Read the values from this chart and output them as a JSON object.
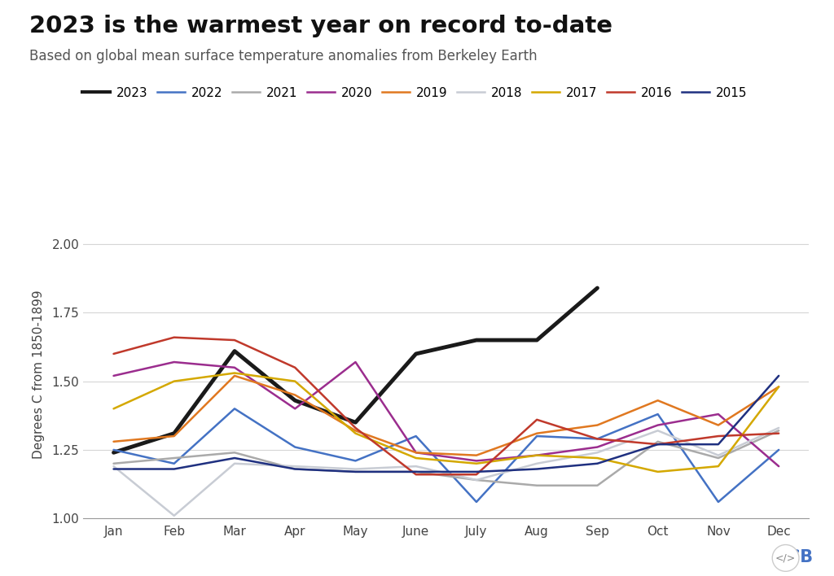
{
  "title": "2023 is the warmest year on record to-date",
  "subtitle": "Based on global mean surface temperature anomalies from Berkeley Earth",
  "ylabel": "Degrees C from 1850-1899",
  "ylim": [
    1.0,
    2.05
  ],
  "yticks": [
    1.0,
    1.25,
    1.5,
    1.75,
    2.0
  ],
  "months": [
    "Jan",
    "Feb",
    "Mar",
    "Apr",
    "May",
    "June",
    "July",
    "Aug",
    "Sep",
    "Oct",
    "Nov",
    "Dec"
  ],
  "series": {
    "2023": {
      "color": "#1a1a1a",
      "linewidth": 3.5,
      "data": [
        1.24,
        1.31,
        1.61,
        1.43,
        1.35,
        1.6,
        1.65,
        1.65,
        1.84,
        null,
        null,
        null
      ]
    },
    "2022": {
      "color": "#4472c4",
      "linewidth": 1.8,
      "data": [
        1.25,
        1.2,
        1.4,
        1.26,
        1.21,
        1.3,
        1.06,
        1.3,
        1.29,
        1.38,
        1.06,
        1.25
      ]
    },
    "2021": {
      "color": "#aaaaaa",
      "linewidth": 1.8,
      "data": [
        1.2,
        1.22,
        1.24,
        1.18,
        1.17,
        1.17,
        1.14,
        1.12,
        1.12,
        1.28,
        1.22,
        1.32
      ]
    },
    "2020": {
      "color": "#9b2d8e",
      "linewidth": 1.8,
      "data": [
        1.52,
        1.57,
        1.55,
        1.4,
        1.57,
        1.24,
        1.21,
        1.23,
        1.26,
        1.34,
        1.38,
        1.19
      ]
    },
    "2019": {
      "color": "#e07820",
      "linewidth": 1.8,
      "data": [
        1.28,
        1.3,
        1.52,
        1.45,
        1.32,
        1.24,
        1.23,
        1.31,
        1.34,
        1.43,
        1.34,
        1.48
      ]
    },
    "2018": {
      "color": "#c8ccd4",
      "linewidth": 1.8,
      "data": [
        1.19,
        1.01,
        1.2,
        1.19,
        1.18,
        1.19,
        1.14,
        1.2,
        1.24,
        1.32,
        1.23,
        1.33
      ]
    },
    "2017": {
      "color": "#d4a800",
      "linewidth": 1.8,
      "data": [
        1.4,
        1.5,
        1.53,
        1.5,
        1.31,
        1.22,
        1.2,
        1.23,
        1.22,
        1.17,
        1.19,
        1.48
      ]
    },
    "2016": {
      "color": "#c0392b",
      "linewidth": 1.8,
      "data": [
        1.6,
        1.66,
        1.65,
        1.55,
        1.33,
        1.16,
        1.16,
        1.36,
        1.29,
        1.27,
        1.3,
        1.31
      ]
    },
    "2015": {
      "color": "#1f3080",
      "linewidth": 1.8,
      "data": [
        1.18,
        1.18,
        1.22,
        1.18,
        1.17,
        1.17,
        1.17,
        1.18,
        1.2,
        1.27,
        1.27,
        1.52
      ]
    }
  },
  "legend_order": [
    "2023",
    "2022",
    "2021",
    "2020",
    "2019",
    "2018",
    "2017",
    "2016",
    "2015"
  ],
  "background_color": "#ffffff",
  "grid_color": "#d5d5d5",
  "title_fontsize": 21,
  "subtitle_fontsize": 12,
  "axis_fontsize": 11,
  "tick_fontsize": 11,
  "legend_fontsize": 11
}
